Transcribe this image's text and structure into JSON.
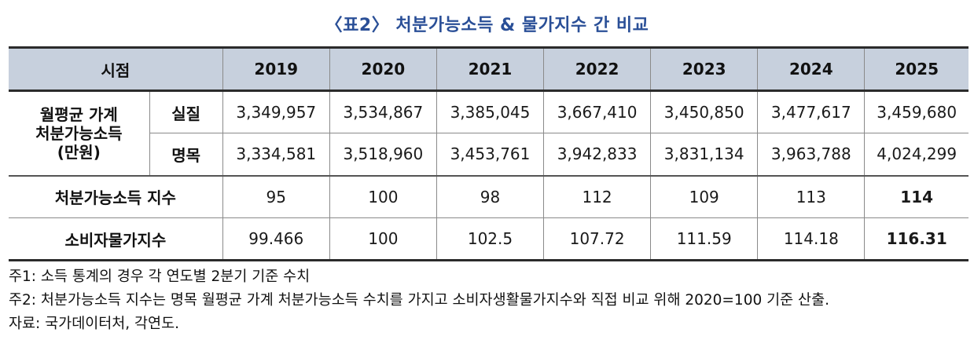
{
  "title": "〈표2〉 처분가능소득 & 물가지수 간 비교",
  "table": {
    "corner": "시점",
    "years": [
      "2019",
      "2020",
      "2021",
      "2022",
      "2023",
      "2024",
      "2025"
    ],
    "group_label": [
      "월평균 가계",
      "처분가능소득",
      "(만원)"
    ],
    "real_label": "실질",
    "real_values": [
      "3,349,957",
      "3,534,867",
      "3,385,045",
      "3,667,410",
      "3,450,850",
      "3,477,617",
      "3,459,680"
    ],
    "nominal_label": "명목",
    "nominal_values": [
      "3,334,581",
      "3,518,960",
      "3,453,761",
      "3,942,833",
      "3,831,134",
      "3,963,788",
      "4,024,299"
    ],
    "income_index_label": "처분가능소득 지수",
    "income_index_values": [
      "95",
      "100",
      "98",
      "112",
      "109",
      "113",
      "114"
    ],
    "cpi_label": "소비자물가지수",
    "cpi_values": [
      "99.466",
      "100",
      "102.5",
      "107.72",
      "111.59",
      "114.18",
      "116.31"
    ]
  },
  "notes": [
    "주1: 소득 통계의 경우 각 연도별 2분기 기준 수치",
    "주2: 처분가능소득 지수는 명목 월평균 가계 처분가능소득 수치를 가지고 소비자생활물가지수와 직접 비교 위해 2020=100 기준 산출.",
    "자료: 국가데이터처, 각연도."
  ]
}
